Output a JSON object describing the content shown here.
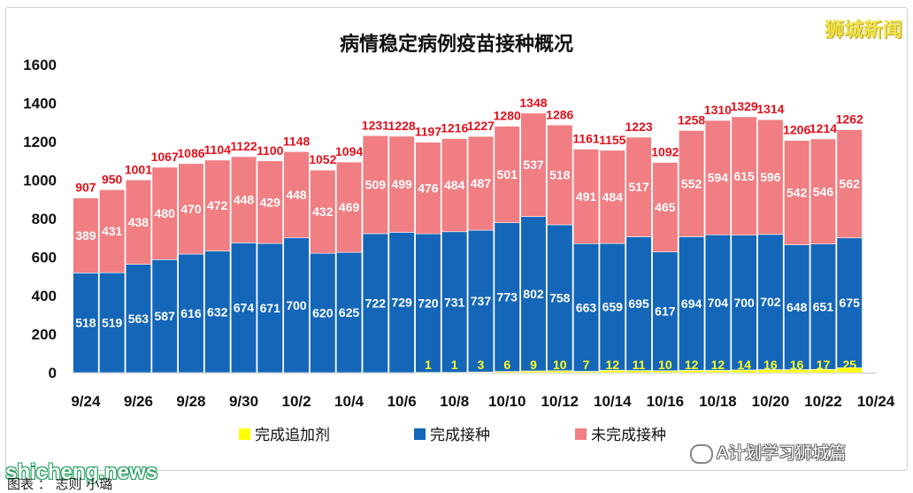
{
  "chart_data": {
    "type": "bar",
    "stacked": true,
    "title": "病情稳定病例疫苗接种概况",
    "categories": [
      "9/24",
      "9/25",
      "9/26",
      "9/27",
      "9/28",
      "9/29",
      "9/30",
      "10/1",
      "10/2",
      "10/3",
      "10/4",
      "10/5",
      "10/6",
      "10/7",
      "10/8",
      "10/9",
      "10/10",
      "10/11",
      "10/12",
      "10/13",
      "10/14",
      "10/15",
      "10/16",
      "10/17",
      "10/18",
      "10/19",
      "10/20",
      "10/21",
      "10/22",
      "10/23"
    ],
    "x_tick_labels": [
      "9/24",
      "9/26",
      "9/28",
      "9/30",
      "10/2",
      "10/4",
      "10/6",
      "10/8",
      "10/10",
      "10/12",
      "10/14",
      "10/16",
      "10/18",
      "10/20",
      "10/22",
      "10/24"
    ],
    "y_ticks": [
      0,
      200,
      400,
      600,
      800,
      1000,
      1200,
      1400,
      1600
    ],
    "ylim": [
      0,
      1600
    ],
    "series": [
      {
        "name": "完成追加剂",
        "color": "#ffff00",
        "values": [
          0,
          0,
          0,
          0,
          0,
          0,
          0,
          0,
          0,
          0,
          0,
          0,
          0,
          1,
          1,
          3,
          6,
          9,
          10,
          7,
          12,
          11,
          10,
          12,
          12,
          14,
          16,
          16,
          17,
          25
        ]
      },
      {
        "name": "完成接种",
        "color": "#1466b8",
        "values": [
          518,
          519,
          563,
          587,
          616,
          632,
          674,
          671,
          700,
          620,
          625,
          722,
          729,
          720,
          731,
          737,
          773,
          802,
          758,
          663,
          659,
          695,
          617,
          694,
          704,
          700,
          702,
          648,
          651,
          675
        ]
      },
      {
        "name": "未完成接种",
        "color": "#f07e82",
        "values": [
          389,
          431,
          438,
          480,
          470,
          472,
          448,
          429,
          448,
          432,
          469,
          509,
          499,
          476,
          484,
          487,
          501,
          537,
          518,
          491,
          484,
          517,
          465,
          552,
          594,
          615,
          596,
          542,
          546,
          562
        ]
      }
    ],
    "totals": [
      907,
      950,
      1001,
      1067,
      1086,
      1104,
      1122,
      1100,
      1148,
      1052,
      1094,
      1231,
      1228,
      1197,
      1216,
      1227,
      1280,
      1348,
      1286,
      1161,
      1155,
      1223,
      1092,
      1258,
      1310,
      1329,
      1314,
      1206,
      1214,
      1262
    ],
    "legend_position": "bottom"
  },
  "branding": {
    "logo_text": "狮城新闻",
    "watermark_site": "shicheng.news",
    "watermark_account": "A计划学习狮城篇",
    "caption": "图表 ： 志则 小璐"
  }
}
